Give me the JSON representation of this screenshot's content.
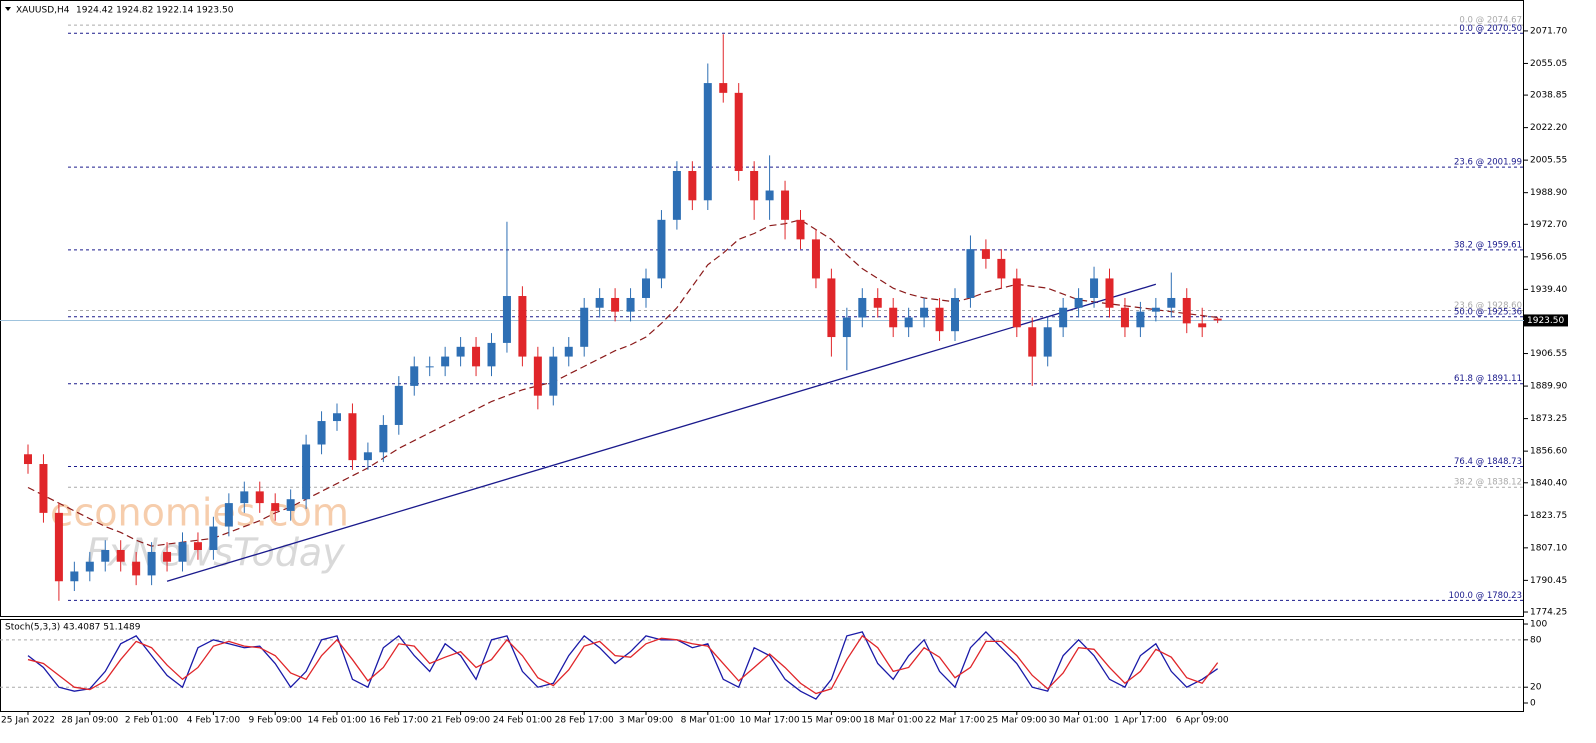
{
  "chart_data": [
    {
      "type": "candlestick",
      "title": "XAUUSD,H4",
      "subtitle": "1924.42 1924.82 1922.14 1923.50",
      "categories": [
        "25 Jan 2022",
        null,
        null,
        null,
        "28 Jan 09:00",
        null,
        null,
        null,
        "2 Feb 01:00",
        null,
        null,
        null,
        "4 Feb 17:00",
        null,
        null,
        null,
        "9 Feb 09:00",
        null,
        null,
        null,
        "14 Feb 01:00",
        null,
        null,
        null,
        "16 Feb 17:00",
        null,
        null,
        null,
        "21 Feb 09:00",
        null,
        null,
        null,
        "24 Feb 01:00",
        null,
        null,
        null,
        "28 Feb 17:00",
        null,
        null,
        null,
        "3 Mar 09:00",
        null,
        null,
        null,
        "8 Mar 01:00",
        null,
        null,
        null,
        "10 Mar 17:00",
        null,
        null,
        null,
        "15 Mar 09:00",
        null,
        null,
        null,
        "18 Mar 01:00",
        null,
        null,
        null,
        "22 Mar 17:00",
        null,
        null,
        null,
        "25 Mar 09:00",
        null,
        null,
        null,
        "30 Mar 01:00",
        null,
        null,
        null,
        "1 Apr 17:00",
        null,
        null,
        null,
        "6 Apr 09:00",
        null
      ],
      "open": [
        1855,
        1850,
        1825,
        1790,
        1795,
        1800,
        1806,
        1800,
        1793,
        1805,
        1800,
        1810,
        1806,
        1818,
        1830,
        1836,
        1830,
        1826,
        1832,
        1860,
        1872,
        1876,
        1852,
        1856,
        1870,
        1890,
        1900,
        1900,
        1905,
        1910,
        1900,
        1912,
        1936,
        1905,
        1885,
        1905,
        1910,
        1930,
        1935,
        1928,
        1935,
        1945,
        1975,
        2000,
        1985,
        2045,
        2040,
        2000,
        1985,
        1990,
        1975,
        1965,
        1945,
        1915,
        1925,
        1935,
        1930,
        1920,
        1925,
        1930,
        1918,
        1935,
        1960,
        1955,
        1945,
        1920,
        1905,
        1920,
        1930,
        1935,
        1945,
        1930,
        1920,
        1928,
        1930,
        1935,
        1922,
        1924.42
      ],
      "high": [
        1860,
        1855,
        1830,
        1800,
        1805,
        1811,
        1811,
        1805,
        1810,
        1810,
        1815,
        1815,
        1823,
        1835,
        1841,
        1841,
        1835,
        1837,
        1865,
        1877,
        1881,
        1881,
        1861,
        1875,
        1895,
        1905,
        1905,
        1910,
        1915,
        1915,
        1917,
        1974,
        1941,
        1910,
        1910,
        1915,
        1935,
        1940,
        1940,
        1940,
        1950,
        1980,
        2005,
        2005,
        2055,
        2070,
        2045,
        2005,
        2008,
        1995,
        1980,
        1970,
        1950,
        1930,
        1940,
        1940,
        1935,
        1930,
        1935,
        1935,
        1940,
        1967,
        1965,
        1960,
        1950,
        1925,
        1925,
        1935,
        1940,
        1951,
        1950,
        1935,
        1933,
        1935,
        1948,
        1940,
        1930,
        1924.82
      ],
      "low": [
        1845,
        1820,
        1780,
        1785,
        1790,
        1795,
        1795,
        1788,
        1788,
        1795,
        1795,
        1801,
        1801,
        1813,
        1825,
        1825,
        1821,
        1821,
        1827,
        1855,
        1867,
        1847,
        1847,
        1851,
        1865,
        1885,
        1895,
        1895,
        1900,
        1895,
        1895,
        1907,
        1900,
        1878,
        1880,
        1900,
        1905,
        1925,
        1923,
        1923,
        1930,
        1940,
        1970,
        1980,
        1980,
        2035,
        1995,
        1975,
        1975,
        1965,
        1960,
        1940,
        1905,
        1898,
        1920,
        1925,
        1915,
        1915,
        1920,
        1913,
        1913,
        1930,
        1950,
        1940,
        1915,
        1890,
        1900,
        1915,
        1925,
        1930,
        1925,
        1915,
        1915,
        1923,
        1925,
        1917,
        1915,
        1922.14
      ],
      "close": [
        1850,
        1825,
        1790,
        1795,
        1800,
        1806,
        1800,
        1793,
        1805,
        1800,
        1810,
        1806,
        1818,
        1830,
        1836,
        1830,
        1826,
        1832,
        1860,
        1872,
        1876,
        1852,
        1856,
        1870,
        1890,
        1900,
        1900,
        1905,
        1910,
        1900,
        1912,
        1936,
        1905,
        1885,
        1905,
        1910,
        1930,
        1935,
        1928,
        1935,
        1945,
        1975,
        2000,
        1985,
        2045,
        2040,
        2000,
        1985,
        1990,
        1975,
        1965,
        1945,
        1915,
        1925,
        1935,
        1930,
        1920,
        1925,
        1930,
        1918,
        1935,
        1960,
        1955,
        1945,
        1920,
        1905,
        1920,
        1930,
        1935,
        1945,
        1930,
        1920,
        1928,
        1930,
        1935,
        1922,
        1920,
        1923.5
      ],
      "up_color": "#2e6fb4",
      "down_color": "#e0262a",
      "moving_average": {
        "color": "#8b1a1a",
        "values": [
          1838,
          1834,
          1830,
          1826,
          1822,
          1818,
          1815,
          1811,
          1808,
          1809,
          1810,
          1811,
          1812,
          1815,
          1818,
          1821,
          1825,
          1828,
          1832,
          1836,
          1840,
          1844,
          1848,
          1853,
          1858,
          1862,
          1866,
          1870,
          1874,
          1878,
          1882,
          1885,
          1888,
          1890,
          1892,
          1896,
          1900,
          1904,
          1908,
          1911,
          1915,
          1922,
          1930,
          1941,
          1952,
          1958,
          1965,
          1968,
          1972,
          1973,
          1975,
          1970,
          1965,
          1957,
          1950,
          1945,
          1940,
          1937,
          1935,
          1934,
          1933,
          1935,
          1938,
          1940,
          1942,
          1941,
          1940,
          1937,
          1934,
          1933,
          1932,
          1931,
          1930,
          1929,
          1928,
          1927,
          1926,
          1925
        ]
      },
      "trendline": {
        "color": "#1a1a8c",
        "x": [
          9,
          73
        ],
        "values": [
          1790,
          1942
        ]
      },
      "levels": [
        {
          "label": "0.0 @ 2074.67",
          "value": 2074.67,
          "color": "#aaaaaa"
        },
        {
          "label": "0.0 @ 2070.50",
          "value": 2070.5,
          "color": "#1a1a8c"
        },
        {
          "label": "23.6 @ 2001.99",
          "value": 2001.99,
          "color": "#1a1a8c"
        },
        {
          "label": "38.2 @ 1959.61",
          "value": 1959.61,
          "color": "#1a1a8c"
        },
        {
          "label": "23.6 @ 1928.60",
          "value": 1928.6,
          "color": "#aaaaaa"
        },
        {
          "label": "50.0 @ 1925.36",
          "value": 1925.36,
          "color": "#1a1a8c"
        },
        {
          "label": "61.8 @ 1891.11",
          "value": 1891.11,
          "color": "#1a1a8c"
        },
        {
          "label": "76.4 @ 1848.73",
          "value": 1848.73,
          "color": "#1a1a8c"
        },
        {
          "label": "38.2 @ 1838.12",
          "value": 1838.12,
          "color": "#aaaaaa"
        },
        {
          "label": "100.0 @ 1780.23",
          "value": 1780.23,
          "color": "#1a1a8c"
        }
      ],
      "current_price": {
        "value": 1923.5,
        "label": "1923.50",
        "color": "#9fc3dd"
      },
      "watermark": [
        "economies.com",
        "FxNewsToday"
      ],
      "ylim": [
        1771.7,
        2086.5
      ],
      "yticks": [
        {
          "value": 2071.7,
          "label": "2071.70"
        },
        2055.05,
        2038.85,
        {
          "value": 2022.2,
          "label": "2022.20"
        },
        2005.55,
        {
          "value": 1988.9,
          "label": "1988.90"
        },
        {
          "value": 1972.7,
          "label": "1972.70"
        },
        1956.05,
        {
          "value": 1939.4,
          "label": "1939.40"
        },
        1906.55,
        {
          "value": 1889.9,
          "label": "1889.90"
        },
        1873.25,
        {
          "value": 1856.6,
          "label": "1856.60"
        },
        {
          "value": 1840.4,
          "label": "1840.40"
        },
        1823.75,
        {
          "value": 1807.1,
          "label": "1807.10"
        },
        1790.45,
        1774.25
      ]
    },
    {
      "type": "line",
      "title": "Stoch(5,3,3) 43.4087 51.1489",
      "series": [
        {
          "color": "#1a1aa8",
          "values": [
            60,
            45,
            20,
            15,
            18,
            40,
            75,
            85,
            60,
            35,
            20,
            70,
            80,
            75,
            70,
            72,
            50,
            20,
            40,
            80,
            85,
            30,
            20,
            70,
            85,
            60,
            40,
            75,
            60,
            30,
            80,
            85,
            40,
            20,
            25,
            60,
            85,
            70,
            50,
            65,
            85,
            80,
            80,
            70,
            75,
            30,
            20,
            70,
            60,
            30,
            15,
            5,
            30,
            85,
            90,
            50,
            30,
            60,
            80,
            40,
            20,
            70,
            90,
            70,
            50,
            20,
            15,
            60,
            80,
            60,
            30,
            20,
            60,
            75,
            40,
            20,
            30,
            43.4087
          ]
        },
        {
          "color": "#e0262a",
          "values": [
            55,
            50,
            35,
            20,
            17,
            28,
            55,
            78,
            70,
            48,
            30,
            45,
            72,
            78,
            72,
            70,
            60,
            38,
            30,
            60,
            80,
            55,
            28,
            45,
            75,
            72,
            50,
            58,
            65,
            45,
            55,
            80,
            60,
            32,
            22,
            42,
            72,
            78,
            60,
            58,
            75,
            82,
            80,
            75,
            72,
            50,
            28,
            45,
            62,
            45,
            25,
            12,
            18,
            55,
            85,
            70,
            40,
            45,
            70,
            58,
            32,
            45,
            78,
            78,
            60,
            35,
            18,
            38,
            70,
            68,
            45,
            25,
            40,
            68,
            58,
            32,
            25,
            51.1489
          ]
        }
      ],
      "ylim": [
        -11.4,
        105.1
      ],
      "yticks": [
        0,
        20,
        80,
        100
      ]
    }
  ]
}
